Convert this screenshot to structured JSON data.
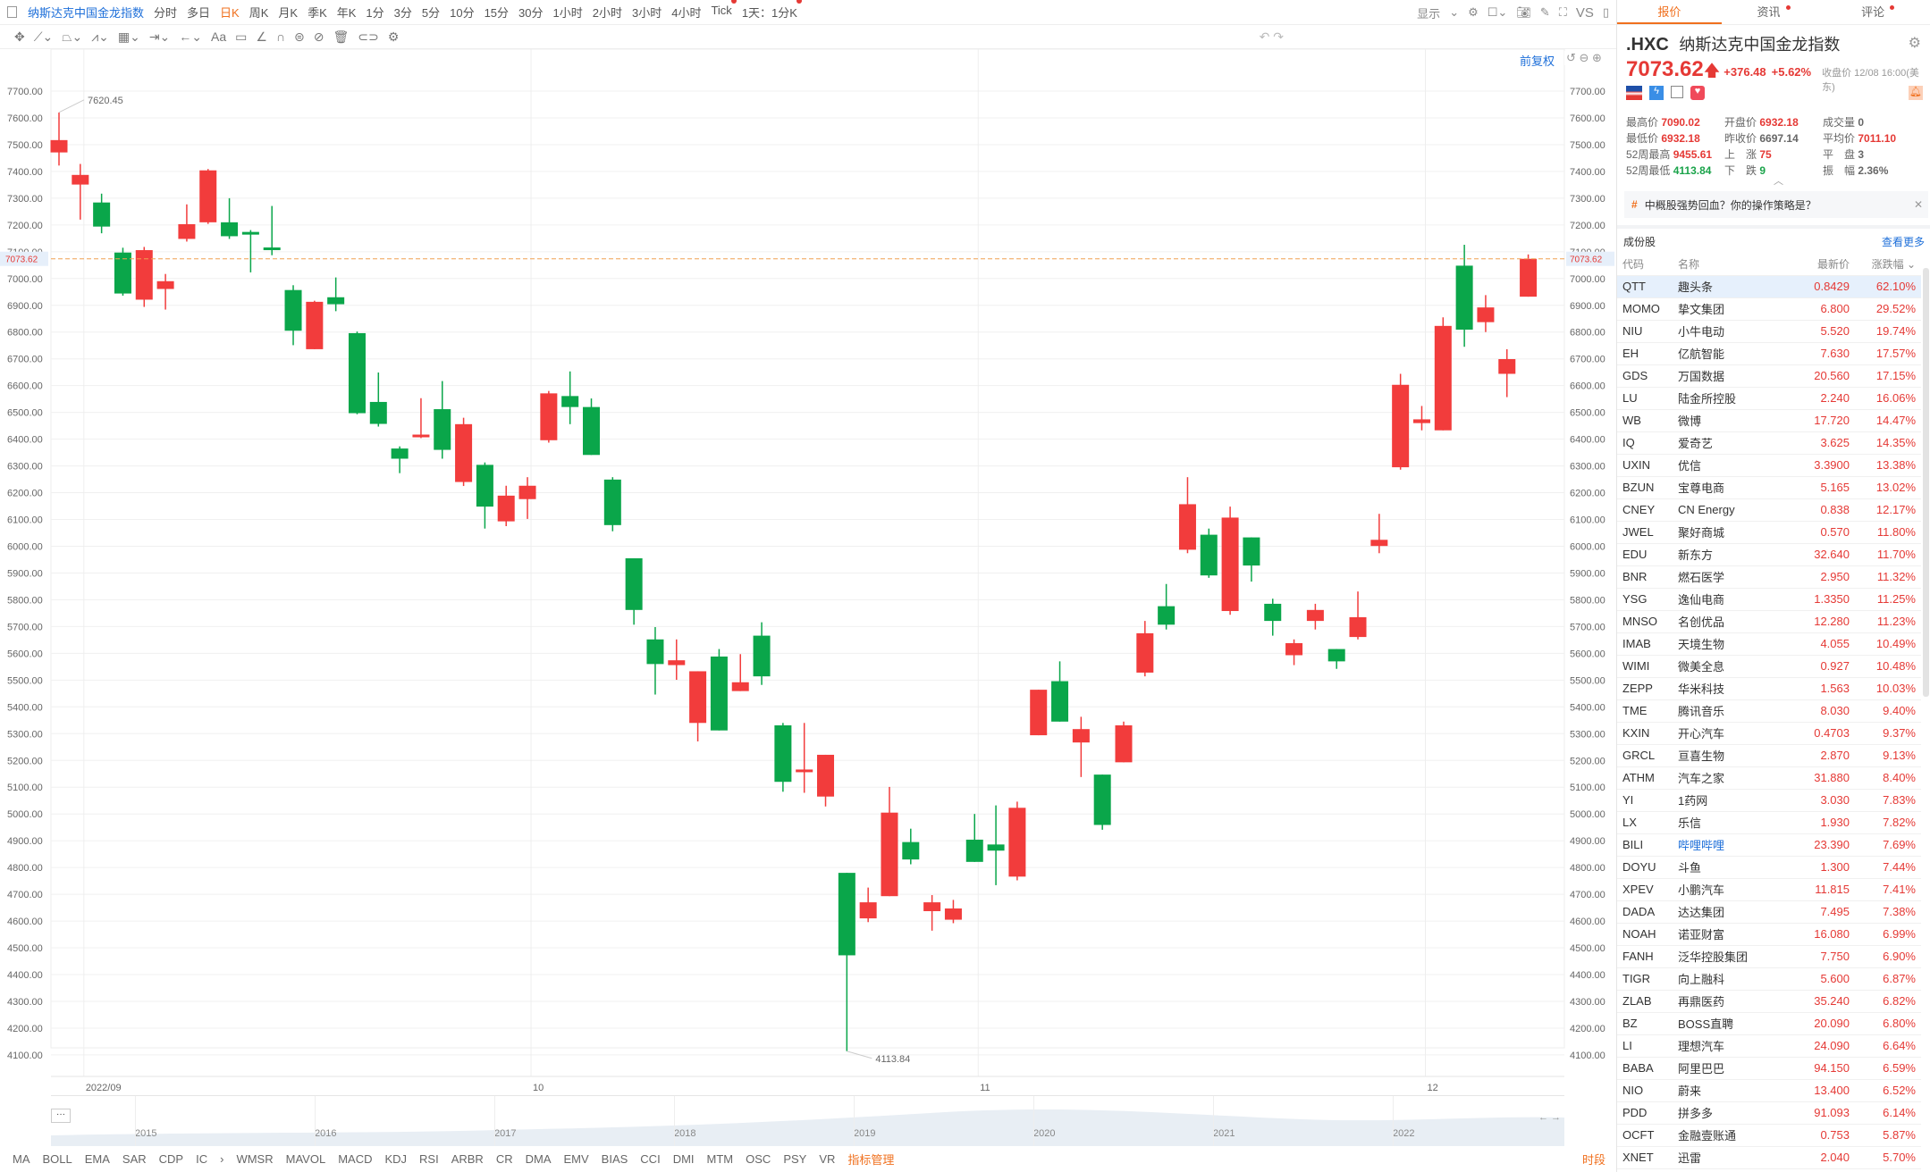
{
  "toolbar": {
    "title": "纳斯达克中国金龙指数",
    "periods": [
      "分时",
      "多日",
      "日K",
      "周K",
      "月K",
      "季K",
      "年K",
      "1分",
      "3分",
      "5分",
      "10分",
      "15分",
      "30分",
      "1小时",
      "2小时",
      "3小时",
      "4小时",
      "Tick",
      "1天：1分K"
    ],
    "selected_period": "日K",
    "right": {
      "display": "显示",
      "vs": "VS"
    },
    "adjust": "前复权"
  },
  "chart_data": {
    "type": "candlestick",
    "ylim": [
      4100,
      7700
    ],
    "yticks": [
      7700,
      7600,
      7500,
      7400,
      7300,
      7200,
      7100,
      7000,
      6900,
      6800,
      6700,
      6600,
      6500,
      6400,
      6300,
      6200,
      6100,
      6000,
      5900,
      5800,
      5700,
      5600,
      5500,
      5400,
      5300,
      5200,
      5100,
      5000,
      4900,
      4800,
      4700,
      4600,
      4500,
      4400,
      4300,
      4200,
      4100
    ],
    "ytick_labels": [
      "7700.00",
      "7600.00",
      "7500.00",
      "7400.00",
      "7300.00",
      "7200.00",
      "7100.00",
      "7000.00",
      "6900.00",
      "6800.00",
      "6700.00",
      "6600.00",
      "6500.00",
      "6400.00",
      "6300.00",
      "6200.00",
      "6100.00",
      "6000.00",
      "5900.00",
      "5800.00",
      "5700.00",
      "5600.00",
      "5500.00",
      "5400.00",
      "5300.00",
      "5200.00",
      "5100.00",
      "5000.00",
      "4900.00",
      "4800.00",
      "4700.00",
      "4600.00",
      "4500.00",
      "4400.00",
      "4300.00",
      "4200.00",
      "4100.00"
    ],
    "xticks": [
      {
        "index": 1,
        "label": "2022/09"
      },
      {
        "index": 22,
        "label": "10"
      },
      {
        "index": 43,
        "label": "11"
      },
      {
        "index": 64,
        "label": "12"
      }
    ],
    "up_color": "#f23c3c",
    "down_color": "#0aa64a",
    "current_price": {
      "value": 7073.62,
      "label": "7073.62"
    },
    "annotations": [
      {
        "index": 0,
        "value": 7620.45,
        "label": "7620.45"
      },
      {
        "index": 37,
        "value": 4113.84,
        "label": "4113.84"
      }
    ],
    "ohlc": [
      [
        7471,
        7620,
        7422,
        7517
      ],
      [
        7351,
        7428,
        7220,
        7387
      ],
      [
        7284,
        7317,
        7169,
        7194
      ],
      [
        7097,
        7115,
        6936,
        6944
      ],
      [
        6921,
        7118,
        6894,
        7106
      ],
      [
        6961,
        7017,
        6884,
        6990
      ],
      [
        7148,
        7277,
        7138,
        7203
      ],
      [
        7210,
        7409,
        7204,
        7404
      ],
      [
        7210,
        7300,
        7148,
        7158
      ],
      [
        7174,
        7181,
        7023,
        7165
      ],
      [
        7116,
        7271,
        7087,
        7107
      ],
      [
        6957,
        6975,
        6751,
        6805
      ],
      [
        6736,
        6917,
        6736,
        6913
      ],
      [
        6930,
        7004,
        6878,
        6904
      ],
      [
        6796,
        6802,
        6493,
        6497
      ],
      [
        6539,
        6649,
        6447,
        6457
      ],
      [
        6365,
        6373,
        6273,
        6327
      ],
      [
        6407,
        6553,
        6404,
        6417
      ],
      [
        6512,
        6617,
        6327,
        6360
      ],
      [
        6240,
        6480,
        6225,
        6456
      ],
      [
        6304,
        6313,
        6066,
        6148
      ],
      [
        6093,
        6226,
        6075,
        6189
      ],
      [
        6176,
        6258,
        6102,
        6226
      ],
      [
        6396,
        6580,
        6387,
        6571
      ],
      [
        6561,
        6653,
        6456,
        6520
      ],
      [
        6520,
        6552,
        6341,
        6341
      ],
      [
        6249,
        6258,
        6056,
        6079
      ],
      [
        5955,
        5955,
        5707,
        5762
      ],
      [
        5652,
        5698,
        5446,
        5560
      ],
      [
        5556,
        5652,
        5501,
        5574
      ],
      [
        5340,
        5533,
        5271,
        5533
      ],
      [
        5588,
        5616,
        5312,
        5312
      ],
      [
        5459,
        5597,
        5459,
        5492
      ],
      [
        5666,
        5716,
        5482,
        5514
      ],
      [
        5331,
        5340,
        5083,
        5120
      ],
      [
        5157,
        5340,
        5079,
        5166
      ],
      [
        5065,
        5221,
        5028,
        5221
      ],
      [
        4780,
        4780,
        4113.84,
        4472
      ],
      [
        4610,
        4725,
        4596,
        4670
      ],
      [
        4693,
        5101,
        4693,
        5005
      ],
      [
        4895,
        4945,
        4812,
        4830
      ],
      [
        4637,
        4697,
        4564,
        4670
      ],
      [
        4605,
        4679,
        4592,
        4647
      ],
      [
        4904,
        5000,
        4821,
        4821
      ],
      [
        4886,
        5032,
        4734,
        4863
      ],
      [
        4766,
        5046,
        4752,
        5023
      ],
      [
        5294,
        5464,
        5294,
        5464
      ],
      [
        5496,
        5570,
        5345,
        5345
      ],
      [
        5267,
        5363,
        5138,
        5317
      ],
      [
        5147,
        5147,
        4941,
        4959
      ],
      [
        5193,
        5345,
        5193,
        5331
      ],
      [
        5528,
        5721,
        5514,
        5675
      ],
      [
        5776,
        5859,
        5689,
        5707
      ],
      [
        5987,
        6258,
        5974,
        6157
      ],
      [
        6043,
        6066,
        5882,
        5891
      ],
      [
        5758,
        6148,
        5744,
        6107
      ],
      [
        6033,
        6033,
        5868,
        5928
      ],
      [
        5785,
        5804,
        5666,
        5721
      ],
      [
        5593,
        5652,
        5556,
        5638
      ],
      [
        5721,
        5785,
        5689,
        5762
      ],
      [
        5616,
        5616,
        5542,
        5570
      ],
      [
        5661,
        5831,
        5652,
        5735
      ],
      [
        6001,
        6121,
        5974,
        6024
      ],
      [
        6295,
        6644,
        6286,
        6603
      ],
      [
        6460,
        6524,
        6433,
        6474
      ],
      [
        6433,
        6855,
        6433,
        6823
      ],
      [
        7048,
        7126,
        6745,
        6809
      ],
      [
        6837,
        6938,
        6800,
        6892
      ],
      [
        6644,
        6736,
        6557,
        6699
      ],
      [
        6932.18,
        7090.02,
        6932.18,
        7073.62
      ]
    ]
  },
  "navigator": {
    "years": [
      "2015",
      "2016",
      "2017",
      "2018",
      "2019",
      "2020",
      "2021",
      "2022"
    ],
    "more": "···"
  },
  "indicators": {
    "main": [
      "MA",
      "BOLL",
      "EMA",
      "SAR",
      "CDP",
      "IC"
    ],
    "sub": [
      "WMSR",
      "MAVOL",
      "MACD",
      "KDJ",
      "RSI",
      "ARBR",
      "CR",
      "DMA",
      "EMV",
      "BIAS",
      "CCI",
      "DMI",
      "MTM",
      "OSC",
      "PSY",
      "VR"
    ],
    "manage": "指标管理",
    "session": "时段"
  },
  "panel": {
    "tabs": [
      "报价",
      "资讯",
      "评论"
    ],
    "symbol": ".HXC",
    "name": "纳斯达克中国金龙指数",
    "price": "7073.62",
    "change": "+376.48",
    "change_pct": "+5.62%",
    "close_time": "收盘价 12/08 16:00(美东)",
    "stats": [
      [
        {
          "k": "最高价",
          "v": "7090.02",
          "c": "red"
        },
        {
          "k": "开盘价",
          "v": "6932.18",
          "c": "red"
        },
        {
          "k": "成交量",
          "v": "0",
          "c": ""
        }
      ],
      [
        {
          "k": "最低价",
          "v": "6932.18",
          "c": "red"
        },
        {
          "k": "昨收价",
          "v": "6697.14",
          "c": ""
        },
        {
          "k": "平均价",
          "v": "7011.10",
          "c": "red"
        }
      ],
      [
        {
          "k": "52周最高",
          "v": "9455.61",
          "c": "red"
        },
        {
          "k": "上　涨",
          "v": "75",
          "c": "red"
        },
        {
          "k": "平　盘",
          "v": "3",
          "c": ""
        }
      ],
      [
        {
          "k": "52周最低",
          "v": "4113.84",
          "c": "green"
        },
        {
          "k": "下　跌",
          "v": "9",
          "c": "green"
        },
        {
          "k": "振　幅",
          "v": "2.36%",
          "c": ""
        }
      ]
    ],
    "topic": "中概股强势回血？你的操作策略是？",
    "constituents_title": "成份股",
    "more": "查看更多",
    "columns": [
      "代码",
      "名称",
      "最新价",
      "涨跌幅"
    ],
    "rows": [
      [
        "QTT",
        "趣头条",
        "0.8429",
        "62.10%"
      ],
      [
        "MOMO",
        "挚文集团",
        "6.800",
        "29.52%"
      ],
      [
        "NIU",
        "小牛电动",
        "5.520",
        "19.74%"
      ],
      [
        "EH",
        "亿航智能",
        "7.630",
        "17.57%"
      ],
      [
        "GDS",
        "万国数据",
        "20.560",
        "17.15%"
      ],
      [
        "LU",
        "陆金所控股",
        "2.240",
        "16.06%"
      ],
      [
        "WB",
        "微博",
        "17.720",
        "14.47%"
      ],
      [
        "IQ",
        "爱奇艺",
        "3.625",
        "14.35%"
      ],
      [
        "UXIN",
        "优信",
        "3.3900",
        "13.38%"
      ],
      [
        "BZUN",
        "宝尊电商",
        "5.165",
        "13.02%"
      ],
      [
        "CNEY",
        "CN Energy",
        "0.838",
        "12.17%"
      ],
      [
        "JWEL",
        "聚好商城",
        "0.570",
        "11.80%"
      ],
      [
        "EDU",
        "新东方",
        "32.640",
        "11.70%"
      ],
      [
        "BNR",
        "燃石医学",
        "2.950",
        "11.32%"
      ],
      [
        "YSG",
        "逸仙电商",
        "1.3350",
        "11.25%"
      ],
      [
        "MNSO",
        "名创优品",
        "12.280",
        "11.23%"
      ],
      [
        "IMAB",
        "天境生物",
        "4.055",
        "10.49%"
      ],
      [
        "WIMI",
        "微美全息",
        "0.927",
        "10.48%"
      ],
      [
        "ZEPP",
        "华米科技",
        "1.563",
        "10.03%"
      ],
      [
        "TME",
        "腾讯音乐",
        "8.030",
        "9.40%"
      ],
      [
        "KXIN",
        "开心汽车",
        "0.4703",
        "9.37%"
      ],
      [
        "GRCL",
        "亘喜生物",
        "2.870",
        "9.13%"
      ],
      [
        "ATHM",
        "汽车之家",
        "31.880",
        "8.40%"
      ],
      [
        "YI",
        "1药网",
        "3.030",
        "7.83%"
      ],
      [
        "LX",
        "乐信",
        "1.930",
        "7.82%"
      ],
      [
        "BILI",
        "哔哩哔哩",
        "23.390",
        "7.69%"
      ],
      [
        "DOYU",
        "斗鱼",
        "1.300",
        "7.44%"
      ],
      [
        "XPEV",
        "小鹏汽车",
        "11.815",
        "7.41%"
      ],
      [
        "DADA",
        "达达集团",
        "7.495",
        "7.38%"
      ],
      [
        "NOAH",
        "诺亚财富",
        "16.080",
        "6.99%"
      ],
      [
        "FANH",
        "泛华控股集团",
        "7.750",
        "6.90%"
      ],
      [
        "TIGR",
        "向上融科",
        "5.600",
        "6.87%"
      ],
      [
        "ZLAB",
        "再鼎医药",
        "35.240",
        "6.82%"
      ],
      [
        "BZ",
        "BOSS直聘",
        "20.090",
        "6.80%"
      ],
      [
        "LI",
        "理想汽车",
        "24.090",
        "6.64%"
      ],
      [
        "BABA",
        "阿里巴巴",
        "94.150",
        "6.59%"
      ],
      [
        "NIO",
        "蔚来",
        "13.400",
        "6.52%"
      ],
      [
        "PDD",
        "拼多多",
        "91.093",
        "6.14%"
      ],
      [
        "OCFT",
        "金融壹账通",
        "0.753",
        "5.87%"
      ],
      [
        "XNET",
        "迅雷",
        "2.040",
        "5.70%"
      ]
    ]
  }
}
